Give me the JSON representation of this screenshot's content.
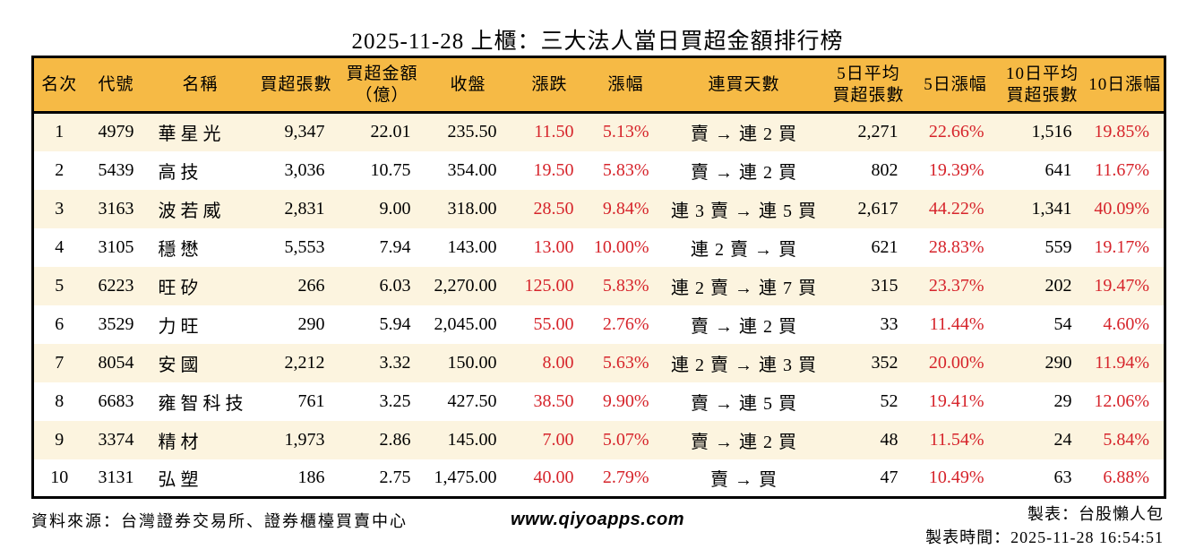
{
  "title": "2025-11-28 上櫃：三大法人當日買超金額排行榜",
  "colors": {
    "header_bg": "#f6ba45",
    "row_alt_bg": "#fcf4df",
    "up_red": "#d6242b",
    "border": "#000000"
  },
  "table": {
    "columns": [
      {
        "key": "rank",
        "label": "名次",
        "red": false
      },
      {
        "key": "code",
        "label": "代號",
        "red": false
      },
      {
        "key": "name",
        "label": "名稱",
        "red": false
      },
      {
        "key": "net-buy-volume",
        "label": "買超張數",
        "red": false
      },
      {
        "key": "net-buy-amount",
        "label": "買超金額\n（億）",
        "red": false
      },
      {
        "key": "close",
        "label": "收盤",
        "red": false
      },
      {
        "key": "change",
        "label": "漲跌",
        "red": true
      },
      {
        "key": "change-pct",
        "label": "漲幅",
        "red": true
      },
      {
        "key": "streak",
        "label": "連買天數",
        "red": false
      },
      {
        "key": "avg5-volume",
        "label": "5日平均\n買超張數",
        "red": false
      },
      {
        "key": "chg5-pct",
        "label": "5日漲幅",
        "red": true
      },
      {
        "key": "avg10-volume",
        "label": "10日平均\n買超張數",
        "red": false
      },
      {
        "key": "chg10-pct",
        "label": "10日漲幅",
        "red": true
      }
    ],
    "rows": [
      [
        "1",
        "4979",
        "華星光",
        "9,347",
        "22.01",
        "235.50",
        "11.50",
        "5.13%",
        "賣 → 連 2 買",
        "2,271",
        "22.66%",
        "1,516",
        "19.85%"
      ],
      [
        "2",
        "5439",
        "高技",
        "3,036",
        "10.75",
        "354.00",
        "19.50",
        "5.83%",
        "賣 → 連 2 買",
        "802",
        "19.39%",
        "641",
        "11.67%"
      ],
      [
        "3",
        "3163",
        "波若威",
        "2,831",
        "9.00",
        "318.00",
        "28.50",
        "9.84%",
        "連 3 賣 → 連 5 買",
        "2,617",
        "44.22%",
        "1,341",
        "40.09%"
      ],
      [
        "4",
        "3105",
        "穩懋",
        "5,553",
        "7.94",
        "143.00",
        "13.00",
        "10.00%",
        "連 2 賣 → 買",
        "621",
        "28.83%",
        "559",
        "19.17%"
      ],
      [
        "5",
        "6223",
        "旺矽",
        "266",
        "6.03",
        "2,270.00",
        "125.00",
        "5.83%",
        "連 2 賣 → 連 7 買",
        "315",
        "23.37%",
        "202",
        "19.47%"
      ],
      [
        "6",
        "3529",
        "力旺",
        "290",
        "5.94",
        "2,045.00",
        "55.00",
        "2.76%",
        "賣 → 連 2 買",
        "33",
        "11.44%",
        "54",
        "4.60%"
      ],
      [
        "7",
        "8054",
        "安國",
        "2,212",
        "3.32",
        "150.00",
        "8.00",
        "5.63%",
        "連 2 賣 → 連 3 買",
        "352",
        "20.00%",
        "290",
        "11.94%"
      ],
      [
        "8",
        "6683",
        "雍智科技",
        "761",
        "3.25",
        "427.50",
        "38.50",
        "9.90%",
        "賣 → 連 5 買",
        "52",
        "19.41%",
        "29",
        "12.06%"
      ],
      [
        "9",
        "3374",
        "精材",
        "1,973",
        "2.86",
        "145.00",
        "7.00",
        "5.07%",
        "賣 → 連 2 買",
        "48",
        "11.54%",
        "24",
        "5.84%"
      ],
      [
        "10",
        "3131",
        "弘塑",
        "186",
        "2.75",
        "1,475.00",
        "40.00",
        "2.79%",
        "賣 → 買",
        "47",
        "10.49%",
        "63",
        "6.88%"
      ]
    ]
  },
  "footer": {
    "source": "資料來源：台灣證券交易所、證券櫃檯買賣中心",
    "website": "www.qiyoapps.com",
    "maker": "製表：台股懶人包",
    "generated_at": "製表時間：2025-11-28 16:54:51"
  }
}
